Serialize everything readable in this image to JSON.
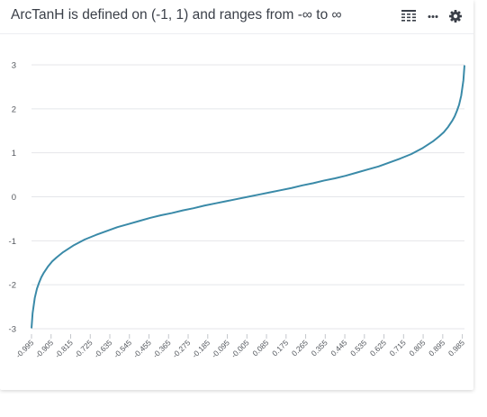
{
  "card": {
    "title": "ArcTanH is defined on (-1, 1) and ranges from -∞ to ∞"
  },
  "toolbar": {
    "icons": [
      "table-view-icon",
      "more-options-icon",
      "settings-gear-icon"
    ]
  },
  "colors": {
    "line": "#3a8aa8",
    "grid": "#e4e6ea",
    "title": "#3a3f48"
  },
  "chart_data": {
    "type": "line",
    "title": "ArcTanH is defined on (-1, 1) and ranges from -∞ to ∞",
    "xlabel": "",
    "ylabel": "",
    "x_range": [
      -0.995,
      0.995
    ],
    "ylim": [
      -3,
      3
    ],
    "yticks": [
      "3",
      "2",
      "1",
      "0",
      "-1",
      "-2",
      "-3"
    ],
    "xticks": [
      "-0.995",
      "-0.905",
      "-0.815",
      "-0.725",
      "-0.635",
      "-0.545",
      "-0.455",
      "-0.365",
      "-0.275",
      "-0.185",
      "-0.095",
      "-0.005",
      "0.085",
      "0.175",
      "0.265",
      "0.355",
      "0.445",
      "0.535",
      "0.625",
      "0.715",
      "0.805",
      "0.895",
      "0.985"
    ],
    "grid": "horizontal",
    "series": [
      {
        "x": [
          -0.995,
          -0.99,
          -0.98,
          -0.97,
          -0.96,
          -0.95,
          -0.94,
          -0.92,
          -0.9,
          -0.88,
          -0.85,
          -0.8,
          -0.75,
          -0.7,
          -0.65,
          -0.6,
          -0.55,
          -0.5,
          -0.45,
          -0.4,
          -0.35,
          -0.3,
          -0.25,
          -0.2,
          -0.15,
          -0.1,
          -0.05,
          0.0,
          0.05,
          0.1,
          0.15,
          0.2,
          0.25,
          0.3,
          0.35,
          0.4,
          0.45,
          0.5,
          0.55,
          0.6,
          0.65,
          0.7,
          0.75,
          0.8,
          0.85,
          0.88,
          0.9,
          0.92,
          0.94,
          0.95,
          0.96,
          0.97,
          0.98,
          0.99,
          0.995
        ],
        "y": [
          -2.99,
          -2.65,
          -2.3,
          -2.09,
          -1.95,
          -1.83,
          -1.74,
          -1.59,
          -1.47,
          -1.38,
          -1.26,
          -1.1,
          -0.97,
          -0.87,
          -0.78,
          -0.69,
          -0.62,
          -0.55,
          -0.48,
          -0.42,
          -0.37,
          -0.31,
          -0.26,
          -0.2,
          -0.15,
          -0.1,
          -0.05,
          0.0,
          0.05,
          0.1,
          0.15,
          0.2,
          0.26,
          0.31,
          0.37,
          0.42,
          0.48,
          0.55,
          0.62,
          0.69,
          0.78,
          0.87,
          0.97,
          1.1,
          1.26,
          1.38,
          1.47,
          1.59,
          1.74,
          1.83,
          1.95,
          2.09,
          2.3,
          2.65,
          2.99
        ]
      }
    ]
  }
}
